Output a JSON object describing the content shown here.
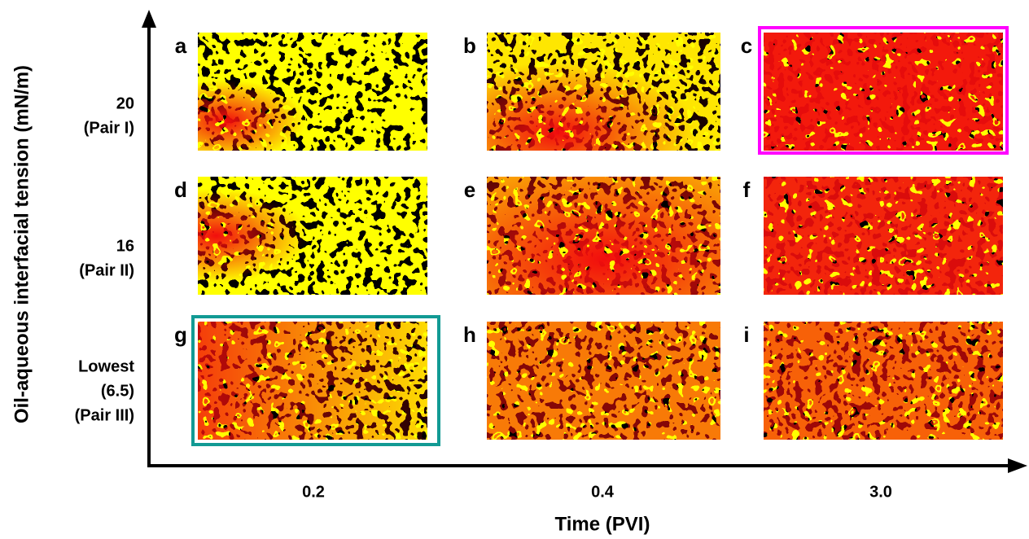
{
  "y_axis": {
    "title": "Oil-aqueous interfacial tension (mN/m)",
    "rows": [
      [
        "20",
        "(Pair I)"
      ],
      [
        "16",
        "(Pair II)"
      ],
      [
        "Lowest",
        "(6.5)",
        "(Pair III)"
      ]
    ]
  },
  "x_axis": {
    "title": "Time (PVI)",
    "columns": [
      "0.2",
      "0.4",
      "3.0"
    ]
  },
  "panels": [
    "a",
    "b",
    "c",
    "d",
    "e",
    "f",
    "g",
    "h",
    "i"
  ]
}
